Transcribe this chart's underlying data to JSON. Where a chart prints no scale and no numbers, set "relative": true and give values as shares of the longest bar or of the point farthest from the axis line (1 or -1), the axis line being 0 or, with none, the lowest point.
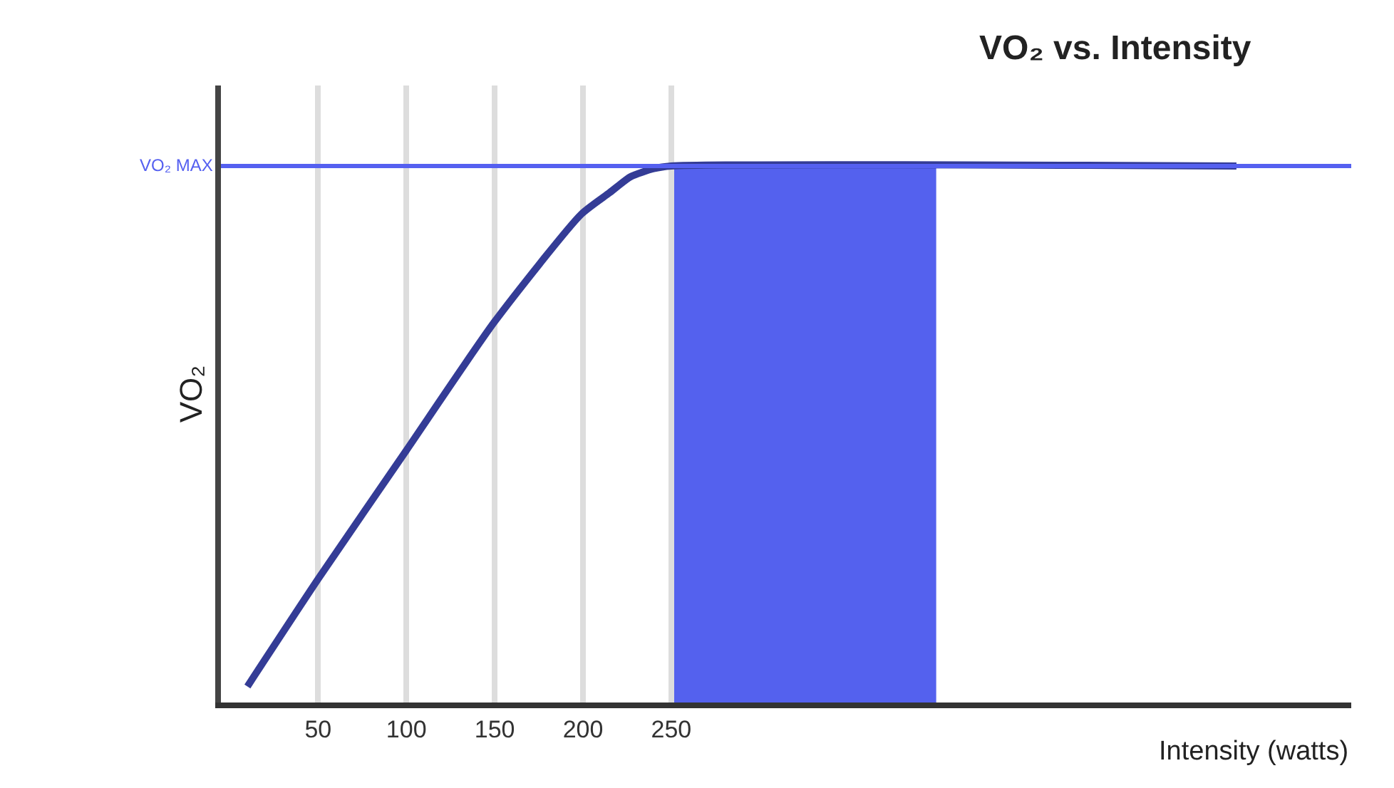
{
  "chart_data": {
    "type": "line",
    "title": "VO₂ vs. Intensity",
    "xlabel": "Intensity (watts)",
    "ylabel": "VO₂",
    "relative": true,
    "xlim": [
      -5,
      635
    ],
    "xticks": [
      50,
      100,
      150,
      200,
      250
    ],
    "grid": "x",
    "series": [
      {
        "color": "#343c96",
        "x": [
          10,
          50,
          100,
          150,
          199,
          215,
          227,
          240,
          250,
          570
        ],
        "values": [
          0.03,
          0.23,
          0.47,
          0.71,
          0.91,
          0.95,
          0.98,
          0.995,
          1.0,
          1.0
        ]
      }
    ],
    "ref_lines": [
      {
        "axis": "y",
        "value": 1,
        "label": "VO₂ MAX",
        "color": "#5560f0"
      }
    ],
    "bands": [
      {
        "axis": "x",
        "from": 250,
        "to": 400,
        "color": "#5461ee"
      }
    ]
  }
}
